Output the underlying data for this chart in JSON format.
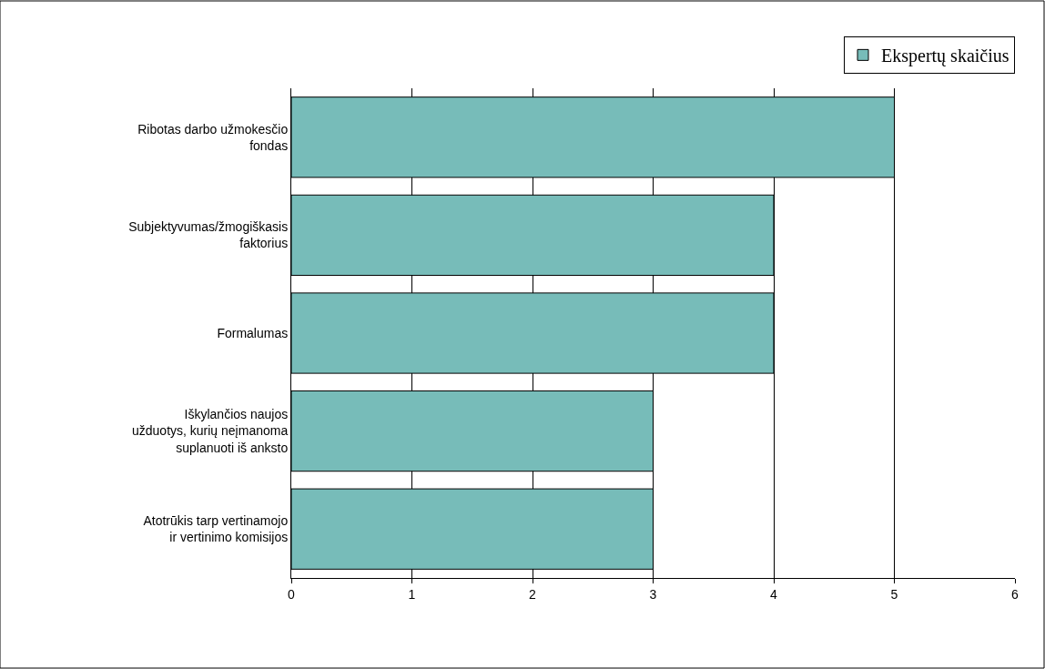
{
  "chart_data": {
    "type": "bar",
    "orientation": "horizontal",
    "categories": [
      "Ribotas darbo užmokesčio fondas",
      "Subjektyvumas/žmogiškasis faktorius",
      "Formalumas",
      "Iškylančios naujos užduotys, kurių neįmanoma suplanuoti iš anksto",
      "Atotrūkis tarp vertinamojo ir vertinimo komisijos"
    ],
    "series": [
      {
        "name": "Ekspertų skaičius",
        "color": "#77bcb9",
        "values": [
          5,
          4,
          4,
          3,
          3
        ]
      }
    ],
    "xlim": [
      0,
      6
    ],
    "xticks": [
      0,
      1,
      2,
      3,
      4,
      5,
      6
    ],
    "grid": "x",
    "legend": "top right"
  }
}
